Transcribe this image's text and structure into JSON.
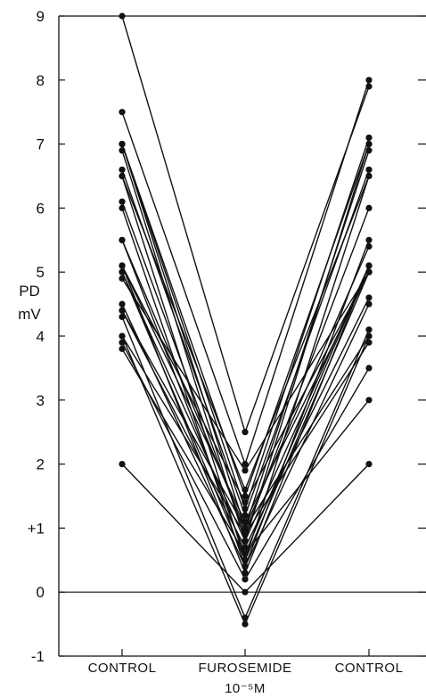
{
  "chart_data": {
    "type": "line",
    "title": "",
    "xlabel": "",
    "ylabel": "PD",
    "ylabel_unit": "mV",
    "categories": [
      "CONTROL",
      "FUROSEMIDE",
      "CONTROL"
    ],
    "category_sublabels": [
      "",
      "10⁻⁵M",
      ""
    ],
    "ylim": [
      -1,
      9
    ],
    "yticks": [
      -1,
      0,
      1,
      2,
      3,
      4,
      5,
      6,
      7,
      8,
      9
    ],
    "ytick_labels": [
      "-1",
      "0",
      "+1",
      "2",
      "3",
      "4",
      "5",
      "6",
      "7",
      "8",
      "9"
    ],
    "zero_line": true,
    "grid": false,
    "colors": {
      "line": "#111111",
      "marker": "#111111"
    },
    "series": [
      {
        "values": [
          9.0,
          2.5,
          7.9
        ]
      },
      {
        "values": [
          2.0,
          0.0,
          2.0
        ]
      },
      {
        "values": [
          7.5,
          2.0,
          8.0
        ]
      },
      {
        "values": [
          7.0,
          1.5,
          7.0
        ]
      },
      {
        "values": [
          7.0,
          1.0,
          6.9
        ]
      },
      {
        "values": [
          7.0,
          1.3,
          7.1
        ]
      },
      {
        "values": [
          6.9,
          0.8,
          7.0
        ]
      },
      {
        "values": [
          6.6,
          1.2,
          6.6
        ]
      },
      {
        "values": [
          6.5,
          0.5,
          6.5
        ]
      },
      {
        "values": [
          6.5,
          1.6,
          6.5
        ]
      },
      {
        "values": [
          6.1,
          0.9,
          6.0
        ]
      },
      {
        "values": [
          6.0,
          0.4,
          5.5
        ]
      },
      {
        "values": [
          5.5,
          1.0,
          5.4
        ]
      },
      {
        "values": [
          5.5,
          0.6,
          5.1
        ]
      },
      {
        "values": [
          5.1,
          0.3,
          5.1
        ]
      },
      {
        "values": [
          5.1,
          1.4,
          5.0
        ]
      },
      {
        "values": [
          5.0,
          0.8,
          5.1
        ]
      },
      {
        "values": [
          5.1,
          1.1,
          5.0
        ]
      },
      {
        "values": [
          5.0,
          0.5,
          5.0
        ]
      },
      {
        "values": [
          4.9,
          1.9,
          5.0
        ]
      },
      {
        "values": [
          4.5,
          0.4,
          4.5
        ]
      },
      {
        "values": [
          4.4,
          0.7,
          4.6
        ]
      },
      {
        "values": [
          4.4,
          1.0,
          4.0
        ]
      },
      {
        "values": [
          4.3,
          -0.4,
          4.1
        ]
      },
      {
        "values": [
          4.0,
          0.9,
          3.9
        ]
      },
      {
        "values": [
          4.0,
          -0.5,
          4.0
        ]
      },
      {
        "values": [
          3.9,
          0.2,
          3.5
        ]
      },
      {
        "values": [
          3.8,
          0.6,
          3.0
        ]
      }
    ]
  }
}
